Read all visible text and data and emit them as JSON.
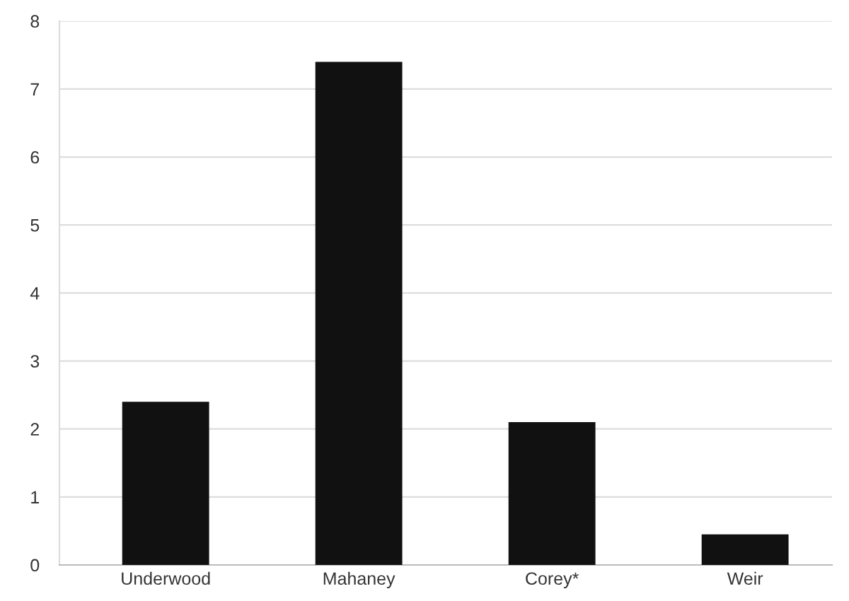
{
  "chart_data": {
    "type": "bar",
    "categories": [
      "Underwood",
      "Mahaney",
      "Corey*",
      "Weir"
    ],
    "values": [
      2.4,
      7.4,
      2.1,
      0.45
    ],
    "color": "#111111",
    "ylim": [
      0,
      8
    ],
    "yticks": [
      0,
      1,
      2,
      3,
      4,
      5,
      6,
      7,
      8
    ],
    "grid": "y"
  }
}
